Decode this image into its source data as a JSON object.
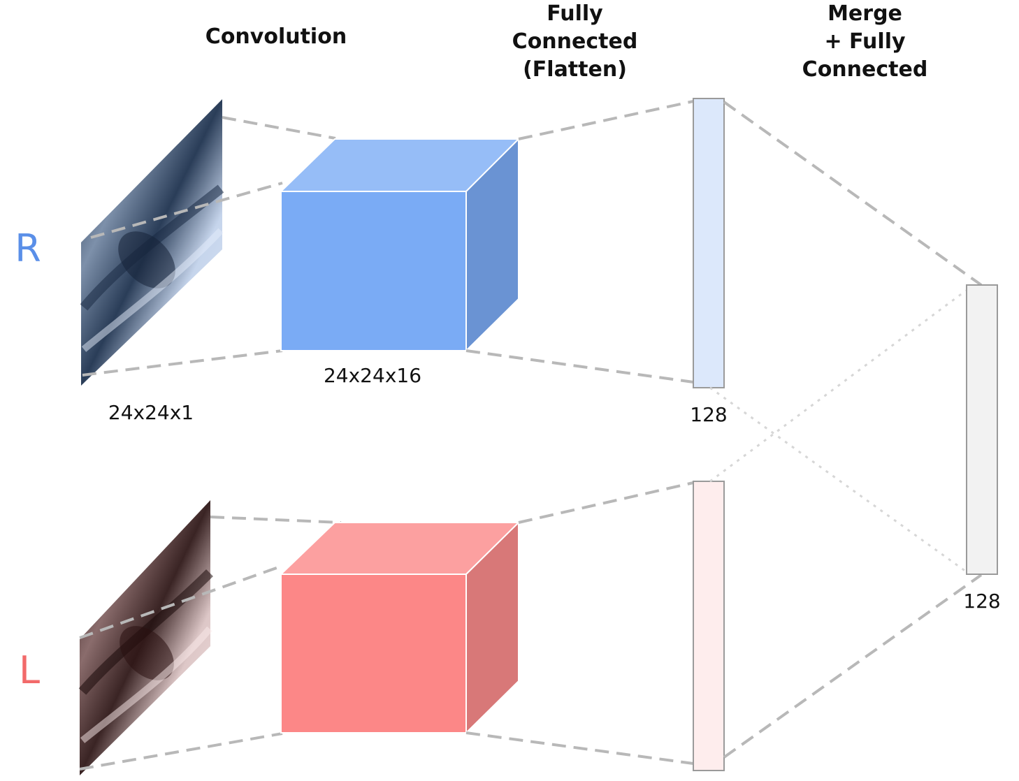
{
  "headers": {
    "convolution": "Convolution",
    "fully_connected": [
      "Fully",
      "Connected",
      "(Flatten)"
    ],
    "merge": [
      "Merge",
      "+ Fully",
      "Connected"
    ]
  },
  "dims": {
    "input": "24x24x1",
    "conv": "24x24x16",
    "fc_right": "128",
    "merge": "128"
  },
  "sides": {
    "right": "R",
    "left": "L"
  },
  "colors": {
    "right_text": "#5a8fe8",
    "left_text": "#f26a6a",
    "right_front": "#7aabf5",
    "right_top": "#96bdf7",
    "right_side": "#6a93d3",
    "left_front": "#fc8787",
    "left_top": "#fca0a0",
    "left_side": "#d87878",
    "right_fc_fill": "#dce8fb",
    "left_fc_fill": "#feeded",
    "merge_fill": "#f2f2f2",
    "connector": "#b8b8b8"
  }
}
